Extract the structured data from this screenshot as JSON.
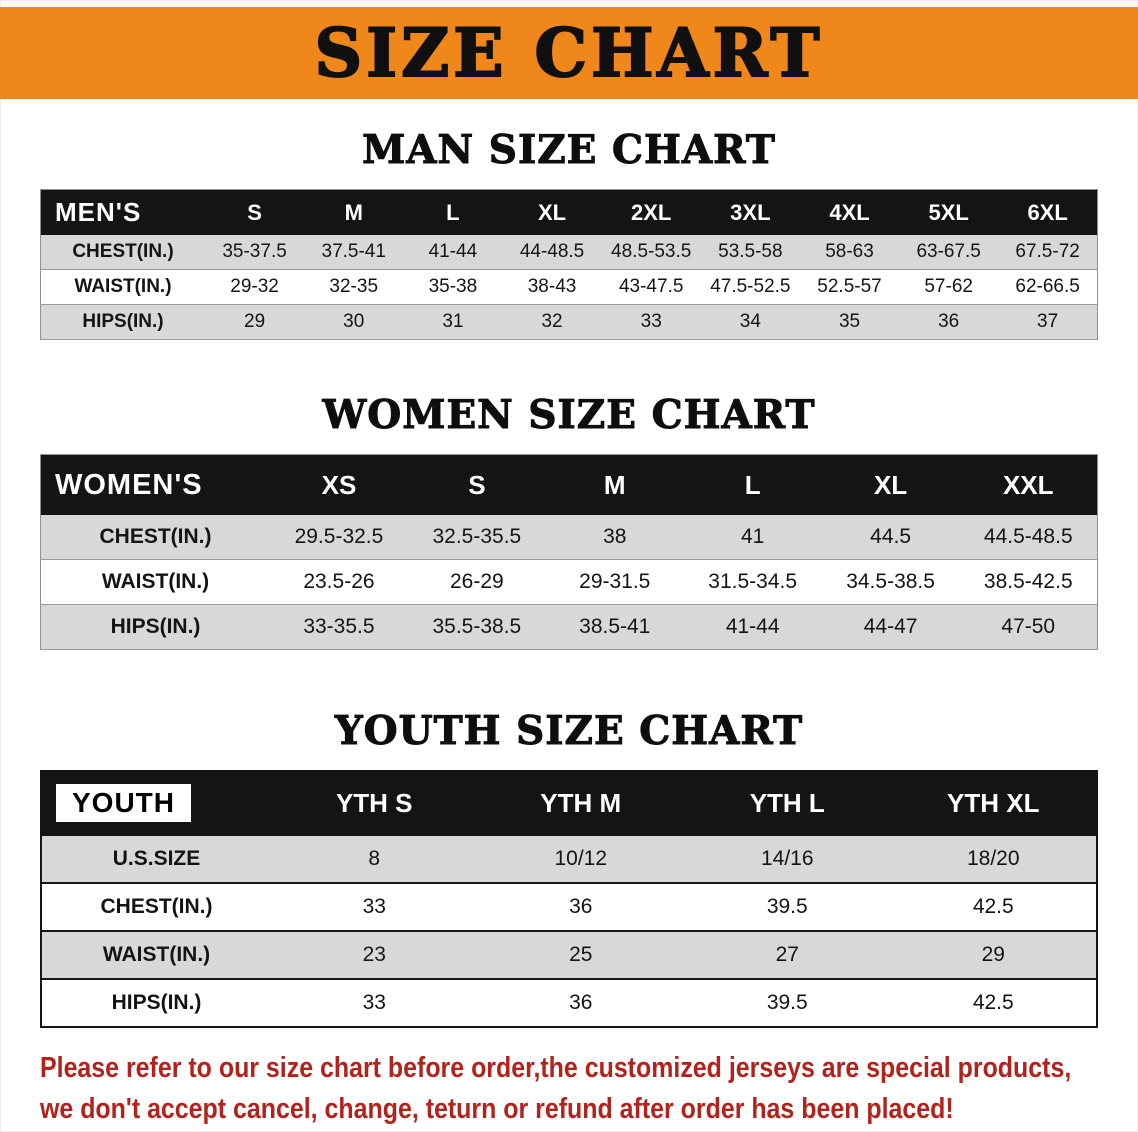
{
  "banner": {
    "title": "SIZE CHART",
    "bg_color": "#f0871a"
  },
  "sections": [
    {
      "heading": "MAN SIZE CHART",
      "table": {
        "header_label": "MEN'S",
        "columns": [
          "S",
          "M",
          "L",
          "XL",
          "2XL",
          "3XL",
          "4XL",
          "5XL",
          "6XL"
        ],
        "rows": [
          {
            "label": "CHEST(IN.)",
            "values": [
              "35-37.5",
              "37.5-41",
              "41-44",
              "44-48.5",
              "48.5-53.5",
              "53.5-58",
              "58-63",
              "63-67.5",
              "67.5-72"
            ]
          },
          {
            "label": "WAIST(IN.)",
            "values": [
              "29-32",
              "32-35",
              "35-38",
              "38-43",
              "43-47.5",
              "47.5-52.5",
              "52.5-57",
              "57-62",
              "62-66.5"
            ]
          },
          {
            "label": "HIPS(IN.)",
            "values": [
              "29",
              "30",
              "31",
              "32",
              "33",
              "34",
              "35",
              "36",
              "37"
            ]
          }
        ]
      }
    },
    {
      "heading": "WOMEN SIZE CHART",
      "table": {
        "header_label": "WOMEN'S",
        "columns": [
          "XS",
          "S",
          "M",
          "L",
          "XL",
          "XXL"
        ],
        "rows": [
          {
            "label": "CHEST(IN.)",
            "values": [
              "29.5-32.5",
              "32.5-35.5",
              "38",
              "41",
              "44.5",
              "44.5-48.5"
            ]
          },
          {
            "label": "WAIST(IN.)",
            "values": [
              "23.5-26",
              "26-29",
              "29-31.5",
              "31.5-34.5",
              "34.5-38.5",
              "38.5-42.5"
            ]
          },
          {
            "label": "HIPS(IN.)",
            "values": [
              "33-35.5",
              "35.5-38.5",
              "38.5-41",
              "41-44",
              "44-47",
              "47-50"
            ]
          }
        ]
      }
    },
    {
      "heading": "YOUTH SIZE CHART",
      "table": {
        "header_label": "YOUTH",
        "columns": [
          "YTH S",
          "YTH M",
          "YTH L",
          "YTH XL"
        ],
        "rows": [
          {
            "label": "U.S.SIZE",
            "values": [
              "8",
              "10/12",
              "14/16",
              "18/20"
            ]
          },
          {
            "label": "CHEST(IN.)",
            "values": [
              "33",
              "36",
              "39.5",
              "42.5"
            ]
          },
          {
            "label": "WAIST(IN.)",
            "values": [
              "23",
              "25",
              "27",
              "29"
            ]
          },
          {
            "label": "HIPS(IN.)",
            "values": [
              "33",
              "36",
              "39.5",
              "42.5"
            ]
          }
        ]
      }
    }
  ],
  "footer": {
    "line1": "Please refer to our size chart before order,the customized jerseys are special products,",
    "line2": "we don't accept cancel, change, teturn or refund after order has been placed!",
    "text_color": "#b3231d"
  }
}
